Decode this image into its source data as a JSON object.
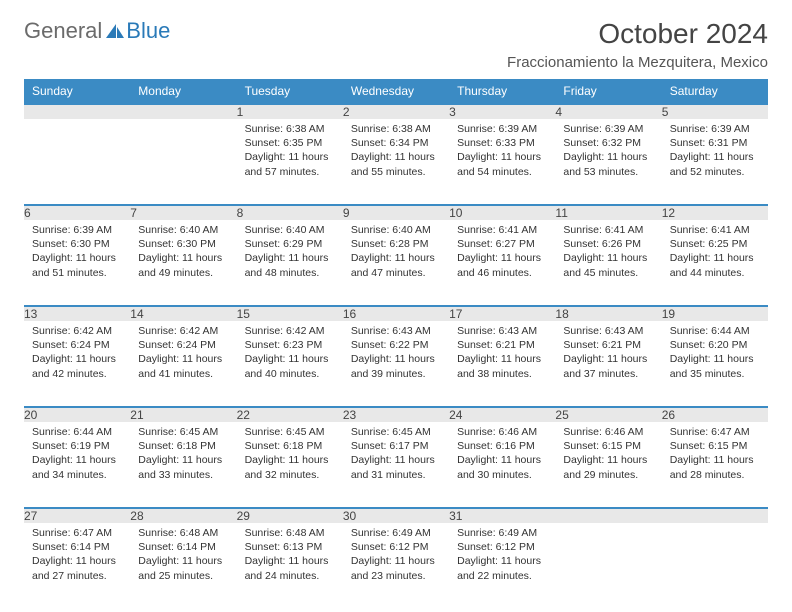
{
  "logo": {
    "part1": "General",
    "part2": "Blue"
  },
  "title": "October 2024",
  "location": "Fraccionamiento la Mezquitera, Mexico",
  "colors": {
    "header_bg": "#3b8bc4",
    "header_text": "#ffffff",
    "daynum_bg": "#e8e8e8",
    "daynum_border": "#3b8bc4",
    "logo_gray": "#6b6b6b",
    "logo_blue": "#2a7ab8",
    "text": "#333333"
  },
  "day_headers": [
    "Sunday",
    "Monday",
    "Tuesday",
    "Wednesday",
    "Thursday",
    "Friday",
    "Saturday"
  ],
  "weeks": [
    [
      null,
      null,
      {
        "n": "1",
        "sunrise": "6:38 AM",
        "sunset": "6:35 PM",
        "daylight": "11 hours and 57 minutes."
      },
      {
        "n": "2",
        "sunrise": "6:38 AM",
        "sunset": "6:34 PM",
        "daylight": "11 hours and 55 minutes."
      },
      {
        "n": "3",
        "sunrise": "6:39 AM",
        "sunset": "6:33 PM",
        "daylight": "11 hours and 54 minutes."
      },
      {
        "n": "4",
        "sunrise": "6:39 AM",
        "sunset": "6:32 PM",
        "daylight": "11 hours and 53 minutes."
      },
      {
        "n": "5",
        "sunrise": "6:39 AM",
        "sunset": "6:31 PM",
        "daylight": "11 hours and 52 minutes."
      }
    ],
    [
      {
        "n": "6",
        "sunrise": "6:39 AM",
        "sunset": "6:30 PM",
        "daylight": "11 hours and 51 minutes."
      },
      {
        "n": "7",
        "sunrise": "6:40 AM",
        "sunset": "6:30 PM",
        "daylight": "11 hours and 49 minutes."
      },
      {
        "n": "8",
        "sunrise": "6:40 AM",
        "sunset": "6:29 PM",
        "daylight": "11 hours and 48 minutes."
      },
      {
        "n": "9",
        "sunrise": "6:40 AM",
        "sunset": "6:28 PM",
        "daylight": "11 hours and 47 minutes."
      },
      {
        "n": "10",
        "sunrise": "6:41 AM",
        "sunset": "6:27 PM",
        "daylight": "11 hours and 46 minutes."
      },
      {
        "n": "11",
        "sunrise": "6:41 AM",
        "sunset": "6:26 PM",
        "daylight": "11 hours and 45 minutes."
      },
      {
        "n": "12",
        "sunrise": "6:41 AM",
        "sunset": "6:25 PM",
        "daylight": "11 hours and 44 minutes."
      }
    ],
    [
      {
        "n": "13",
        "sunrise": "6:42 AM",
        "sunset": "6:24 PM",
        "daylight": "11 hours and 42 minutes."
      },
      {
        "n": "14",
        "sunrise": "6:42 AM",
        "sunset": "6:24 PM",
        "daylight": "11 hours and 41 minutes."
      },
      {
        "n": "15",
        "sunrise": "6:42 AM",
        "sunset": "6:23 PM",
        "daylight": "11 hours and 40 minutes."
      },
      {
        "n": "16",
        "sunrise": "6:43 AM",
        "sunset": "6:22 PM",
        "daylight": "11 hours and 39 minutes."
      },
      {
        "n": "17",
        "sunrise": "6:43 AM",
        "sunset": "6:21 PM",
        "daylight": "11 hours and 38 minutes."
      },
      {
        "n": "18",
        "sunrise": "6:43 AM",
        "sunset": "6:21 PM",
        "daylight": "11 hours and 37 minutes."
      },
      {
        "n": "19",
        "sunrise": "6:44 AM",
        "sunset": "6:20 PM",
        "daylight": "11 hours and 35 minutes."
      }
    ],
    [
      {
        "n": "20",
        "sunrise": "6:44 AM",
        "sunset": "6:19 PM",
        "daylight": "11 hours and 34 minutes."
      },
      {
        "n": "21",
        "sunrise": "6:45 AM",
        "sunset": "6:18 PM",
        "daylight": "11 hours and 33 minutes."
      },
      {
        "n": "22",
        "sunrise": "6:45 AM",
        "sunset": "6:18 PM",
        "daylight": "11 hours and 32 minutes."
      },
      {
        "n": "23",
        "sunrise": "6:45 AM",
        "sunset": "6:17 PM",
        "daylight": "11 hours and 31 minutes."
      },
      {
        "n": "24",
        "sunrise": "6:46 AM",
        "sunset": "6:16 PM",
        "daylight": "11 hours and 30 minutes."
      },
      {
        "n": "25",
        "sunrise": "6:46 AM",
        "sunset": "6:15 PM",
        "daylight": "11 hours and 29 minutes."
      },
      {
        "n": "26",
        "sunrise": "6:47 AM",
        "sunset": "6:15 PM",
        "daylight": "11 hours and 28 minutes."
      }
    ],
    [
      {
        "n": "27",
        "sunrise": "6:47 AM",
        "sunset": "6:14 PM",
        "daylight": "11 hours and 27 minutes."
      },
      {
        "n": "28",
        "sunrise": "6:48 AM",
        "sunset": "6:14 PM",
        "daylight": "11 hours and 25 minutes."
      },
      {
        "n": "29",
        "sunrise": "6:48 AM",
        "sunset": "6:13 PM",
        "daylight": "11 hours and 24 minutes."
      },
      {
        "n": "30",
        "sunrise": "6:49 AM",
        "sunset": "6:12 PM",
        "daylight": "11 hours and 23 minutes."
      },
      {
        "n": "31",
        "sunrise": "6:49 AM",
        "sunset": "6:12 PM",
        "daylight": "11 hours and 22 minutes."
      },
      null,
      null
    ]
  ],
  "labels": {
    "sunrise": "Sunrise:",
    "sunset": "Sunset:",
    "daylight": "Daylight:"
  }
}
